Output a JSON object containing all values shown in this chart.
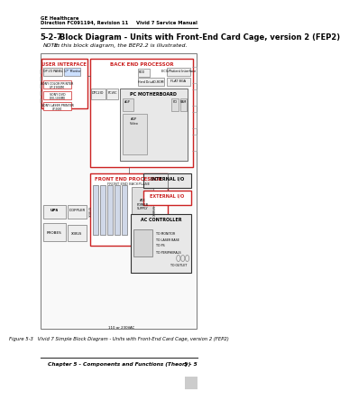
{
  "page_bg": "#ffffff",
  "header_left_line1": "GE Healthcare",
  "header_left_line2": "Direction FC091194, Revision 11",
  "header_right": "Vivid 7 Service Manual",
  "section_num": "5-2-7",
  "section_title": "Block Diagram - Units with Front-End Card Cage, version 2 (FEP2)",
  "note_label": "NOTE:",
  "note_text": "In this block diagram, the BEP2.2 is illustrated.",
  "figure_caption": "Figure 5-3   Vivid 7 Simple Block Diagram - Units with Front-End Card Cage, version 2 (FEP2)",
  "footer_center": "Chapter 5 - Components and Functions (Theory)",
  "footer_right": "5 - 5",
  "red": "#cc2222",
  "dark": "#333333",
  "gray": "#888888",
  "lightgray": "#dddddd",
  "bgbox": "#f5f5f5",
  "white": "#ffffff"
}
